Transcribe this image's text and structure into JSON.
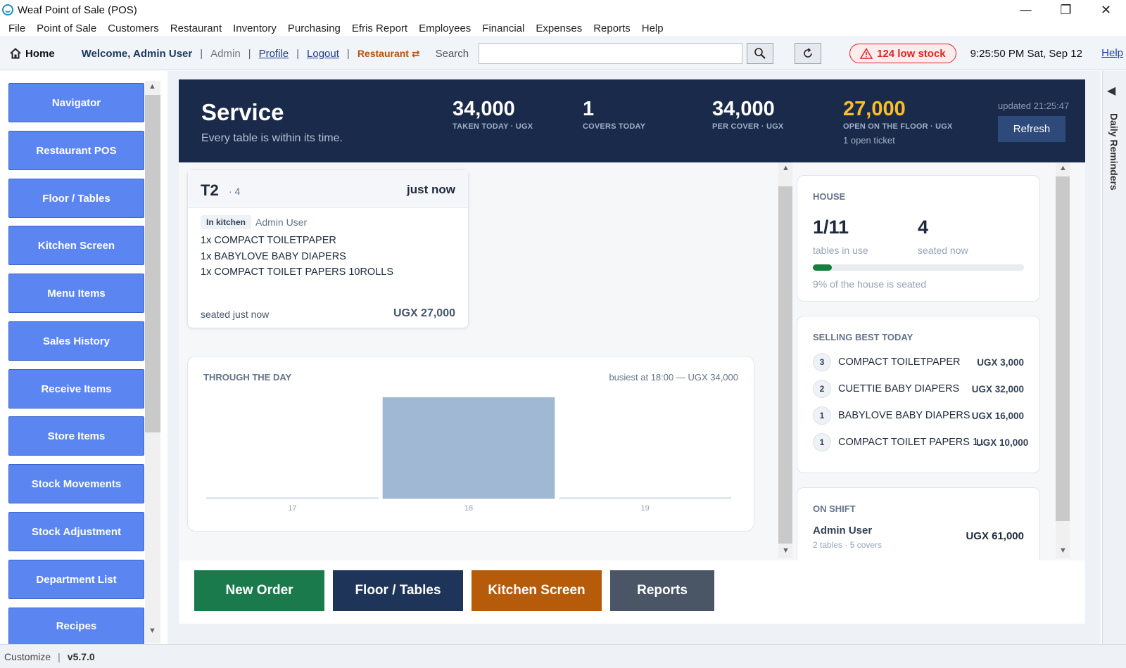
{
  "window": {
    "title": "Weaf Point of Sale (POS)",
    "minimize": "—",
    "restore": "❐",
    "close": "✕"
  },
  "menu": [
    "File",
    "Point of Sale",
    "Customers",
    "Restaurant",
    "Inventory",
    "Purchasing",
    "Efris Report",
    "Employees",
    "Financial",
    "Expenses",
    "Reports",
    "Help"
  ],
  "toolbar": {
    "home": "Home",
    "welcome": "Welcome, Admin User",
    "role": "Admin",
    "profile": "Profile",
    "logout": "Logout",
    "restaurant": "Restaurant ⇄",
    "search_label": "Search",
    "search_value": "",
    "low_stock": "124 low stock",
    "datetime": "9:25:50 PM Sat, Sep 12",
    "help": "Help"
  },
  "sidebar": [
    "Navigator",
    "Restaurant POS",
    "Floor / Tables",
    "Kitchen Screen",
    "Menu Items",
    "Sales History",
    "Receive Items",
    "Store Items",
    "Stock Movements",
    "Stock Adjustment",
    "Department List",
    "Recipes"
  ],
  "hero": {
    "title": "Service",
    "subtitle": "Every table is within its time.",
    "stats": [
      {
        "value": "34,000",
        "label": "TAKEN TODAY · UGX"
      },
      {
        "value": "1",
        "label": "COVERS TODAY"
      },
      {
        "value": "34,000",
        "label": "PER COVER · UGX"
      },
      {
        "value": "27,000",
        "label": "OPEN ON THE FLOOR · UGX",
        "sub": "1 open ticket"
      }
    ],
    "updated": "updated 21:25:47",
    "refresh": "Refresh"
  },
  "ticket": {
    "table": "T2",
    "guests": "· 4",
    "time": "just now",
    "status": "In kitchen",
    "staff": "Admin User",
    "items": [
      "1x COMPACT TOILETPAPER",
      "1x BABYLOVE BABY DIAPERS",
      "1x COMPACT TOILET PAPERS 10ROLLS"
    ],
    "seated": "seated just now",
    "total": "UGX 27,000"
  },
  "chart_card": {
    "title": "THROUGH THE DAY",
    "note": "busiest at 18:00 — UGX 34,000"
  },
  "chart_data": {
    "type": "bar",
    "categories": [
      "17",
      "18",
      "19"
    ],
    "values": [
      0,
      34000,
      0
    ],
    "ylim": [
      0,
      34000
    ],
    "bar_color": "#a0b8d4",
    "baseline_color": "#e2e8f0",
    "grid": false
  },
  "house": {
    "title": "HOUSE",
    "tables": "1/11",
    "tables_label": "tables in use",
    "seated": "4",
    "seated_label": "seated now",
    "seated_fraction": 0.09,
    "note": "9% of the house is seated"
  },
  "best": {
    "title": "SELLING BEST TODAY",
    "items": [
      {
        "rank": "3",
        "name": "COMPACT TOILETPAPER",
        "value": "UGX 3,000"
      },
      {
        "rank": "2",
        "name": "CUETTIE BABY DIAPERS",
        "value": "UGX 32,000"
      },
      {
        "rank": "1",
        "name": "BABYLOVE BABY DIAPERS",
        "value": "UGX 16,000"
      },
      {
        "rank": "1",
        "name": "COMPACT TOILET PAPERS 1...",
        "value": "UGX 10,000"
      }
    ]
  },
  "shift": {
    "title": "ON SHIFT",
    "name": "Admin User",
    "sub": "2 tables · 5 covers",
    "value": "UGX 61,000"
  },
  "actions": [
    {
      "label": "New Order",
      "color": "#1a7a4c"
    },
    {
      "label": "Floor / Tables",
      "color": "#1e3559"
    },
    {
      "label": "Kitchen Screen",
      "color": "#b65b0a"
    },
    {
      "label": "Reports",
      "color": "#4a5566"
    }
  ],
  "reminders": {
    "toggle": "◀",
    "label": "Daily Reminders"
  },
  "status": {
    "customize": "Customize",
    "version": "v5.7.0"
  },
  "colors": {
    "accent": "#5b86f2",
    "hero_bg": "#1a2a4a",
    "gold": "#fbbf24",
    "alert": "#dc2626",
    "progress": "#15803d"
  }
}
